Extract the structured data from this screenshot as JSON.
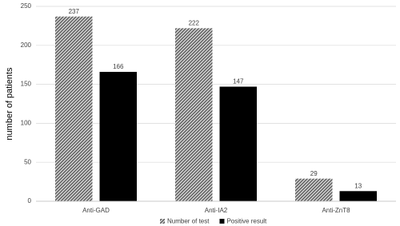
{
  "chart_data": {
    "type": "bar",
    "y_label": "number of patients",
    "categories": [
      "Anti-GAD",
      "Anti-IA2",
      "Anti-ZnT8"
    ],
    "series": [
      {
        "name": "Number of test",
        "color": "#595959",
        "hatch": true,
        "values": [
          237,
          222,
          29
        ]
      },
      {
        "name": "Positive result",
        "color": "#000000",
        "values": [
          166,
          147,
          13
        ]
      }
    ],
    "ylim": [
      0,
      250
    ],
    "yticks": [
      0,
      50,
      100,
      150,
      200,
      250
    ],
    "grid": true,
    "legend": "bottom"
  }
}
